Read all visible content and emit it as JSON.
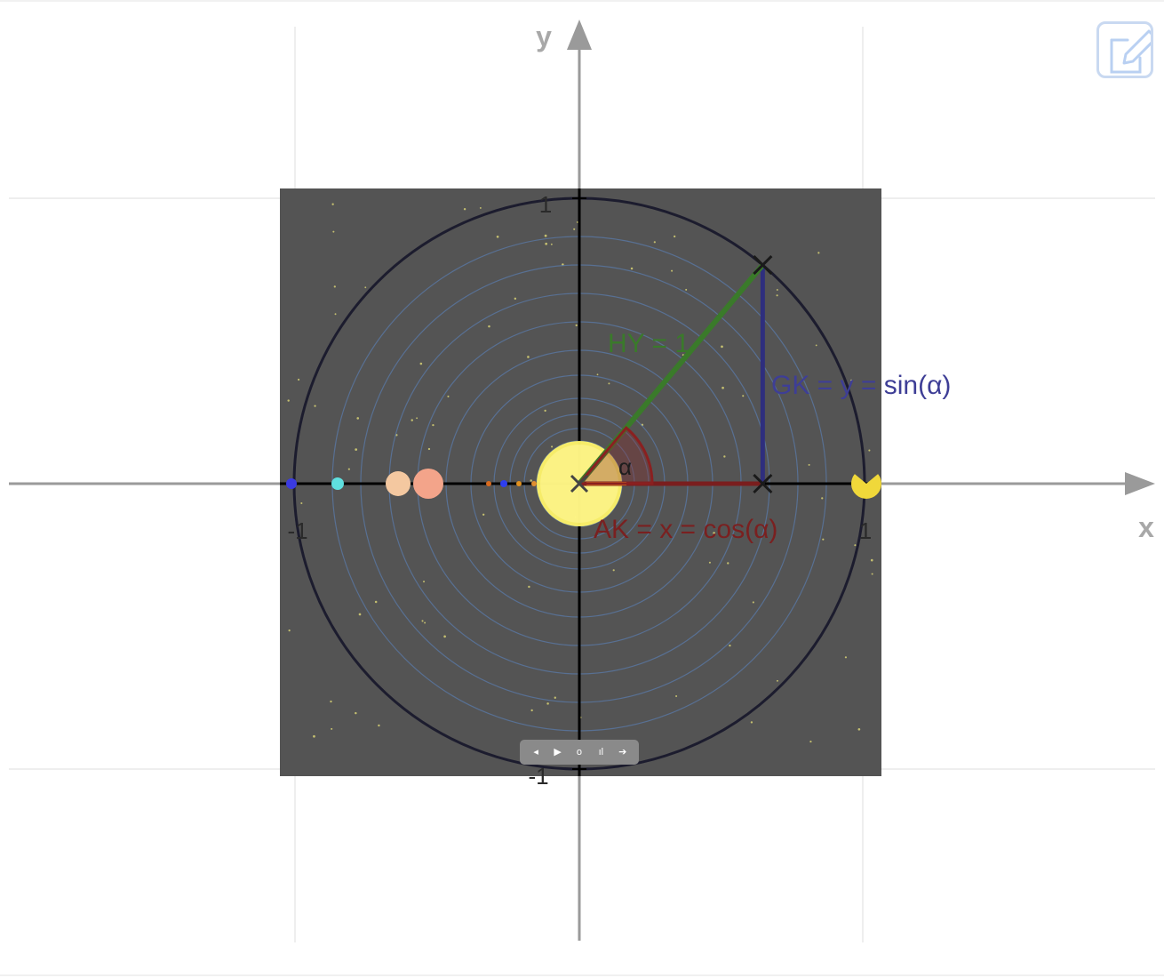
{
  "axes": {
    "x_label": "x",
    "y_label": "y",
    "ticks": {
      "x_neg": "-1",
      "x_pos": "1",
      "y_pos": "1",
      "y_neg": "-1"
    }
  },
  "labels": {
    "hypotenuse": "HY = 1",
    "opposite": "GK = y = sin(α)",
    "adjacent": "AK = x = cos(α)",
    "angle": "α"
  },
  "angle_deg": 50,
  "colors": {
    "hypotenuse": "#3a7a2a",
    "opposite": "#2e2e7e",
    "adjacent": "#7a1e1e",
    "angle_arc": "#8a2020",
    "background": "#545454",
    "sun": "#fff46a",
    "orbits": "#5a79a8",
    "axis_gray": "#9a9a9a",
    "edit_icon": "#b9d0f2"
  },
  "controls": {
    "items": [
      {
        "name": "step-back-control",
        "glyph": "◂"
      },
      {
        "name": "play-control",
        "glyph": "▶"
      },
      {
        "name": "reset-control",
        "glyph": "o"
      },
      {
        "name": "chart-control",
        "glyph": "ıl"
      },
      {
        "name": "step-forward-control",
        "glyph": "➔"
      }
    ]
  },
  "icons": {
    "edit": "pencil-edit-icon"
  }
}
